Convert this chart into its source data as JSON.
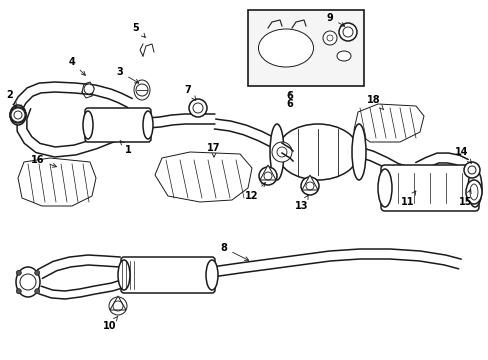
{
  "background_color": "#ffffff",
  "line_color": "#1a1a1a",
  "label_color": "#000000",
  "figsize": [
    4.89,
    3.6
  ],
  "dpi": 100,
  "xlim": [
    0,
    489
  ],
  "ylim": [
    0,
    360
  ]
}
